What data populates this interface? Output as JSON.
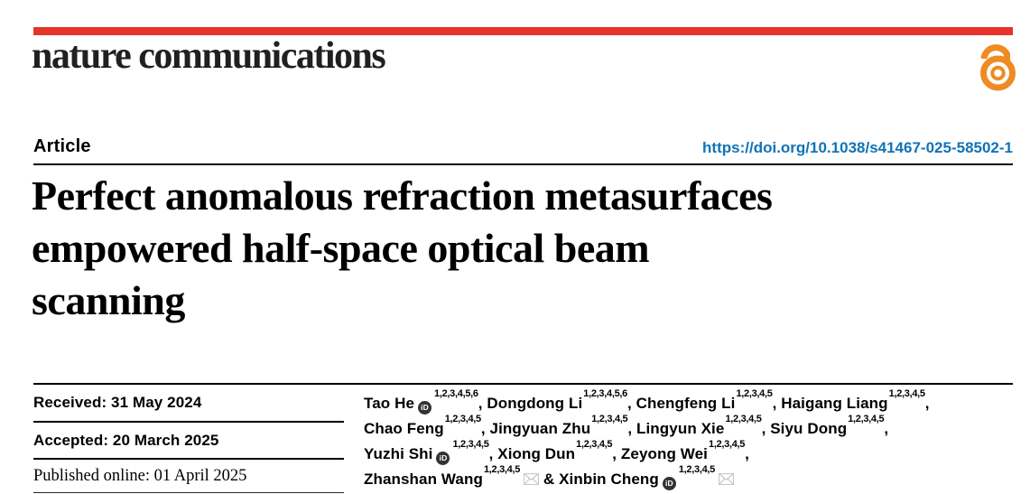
{
  "brand": {
    "journal": "nature communications",
    "accent_red": "#e5342b",
    "open_access_orange": "#ee8b22",
    "link_blue": "#1173b5"
  },
  "header": {
    "article_label": "Article",
    "doi": "https://doi.org/10.1038/s41467-025-58502-1"
  },
  "title": {
    "full": "Perfect anomalous refraction metasurfaces empowered half-space optical beam scanning",
    "lines": [
      "Perfect anomalous refraction metasurfaces",
      "empowered half-space optical beam",
      "scanning"
    ]
  },
  "dates": {
    "received": "Received: 31 May 2024",
    "accepted": "Accepted: 20 March 2025",
    "published": "Published online: 01 April 2025"
  },
  "authors": {
    "orcid_label": "iD",
    "lines": [
      [
        {
          "name": "Tao He",
          "orcid": true,
          "sup": "1,2,3,4,5,6",
          "trail": ", "
        },
        {
          "name": "Dongdong Li",
          "sup": "1,2,3,4,5,6",
          "trail": ", "
        },
        {
          "name": "Chengfeng Li",
          "sup": "1,2,3,4,5",
          "trail": ", "
        },
        {
          "name": "Haigang Liang",
          "sup": "1,2,3,4,5",
          "trail": ","
        }
      ],
      [
        {
          "name": "Chao Feng",
          "sup": "1,2,3,4,5",
          "trail": ", "
        },
        {
          "name": "Jingyuan Zhu",
          "sup": "1,2,3,4,5",
          "trail": ", "
        },
        {
          "name": "Lingyun Xie",
          "sup": "1,2,3,4,5",
          "trail": ", "
        },
        {
          "name": "Siyu Dong",
          "sup": "1,2,3,4,5",
          "trail": ","
        }
      ],
      [
        {
          "name": "Yuzhi Shi",
          "orcid": true,
          "sup": "1,2,3,4,5",
          "trail": ", "
        },
        {
          "name": "Xiong Dun",
          "sup": "1,2,3,4,5",
          "trail": ", "
        },
        {
          "name": "Zeyong Wei",
          "sup": "1,2,3,4,5",
          "trail": ","
        }
      ],
      [
        {
          "name": "Zhanshan Wang",
          "sup": "1,2,3,4,5",
          "envelope": true,
          "trail": " & "
        },
        {
          "name": "Xinbin Cheng",
          "orcid": true,
          "sup": "1,2,3,4,5",
          "envelope": true
        }
      ]
    ]
  },
  "icons": {
    "open_access": "open-access-lock",
    "orcid": "orcid-id-badge",
    "email": "envelope"
  }
}
